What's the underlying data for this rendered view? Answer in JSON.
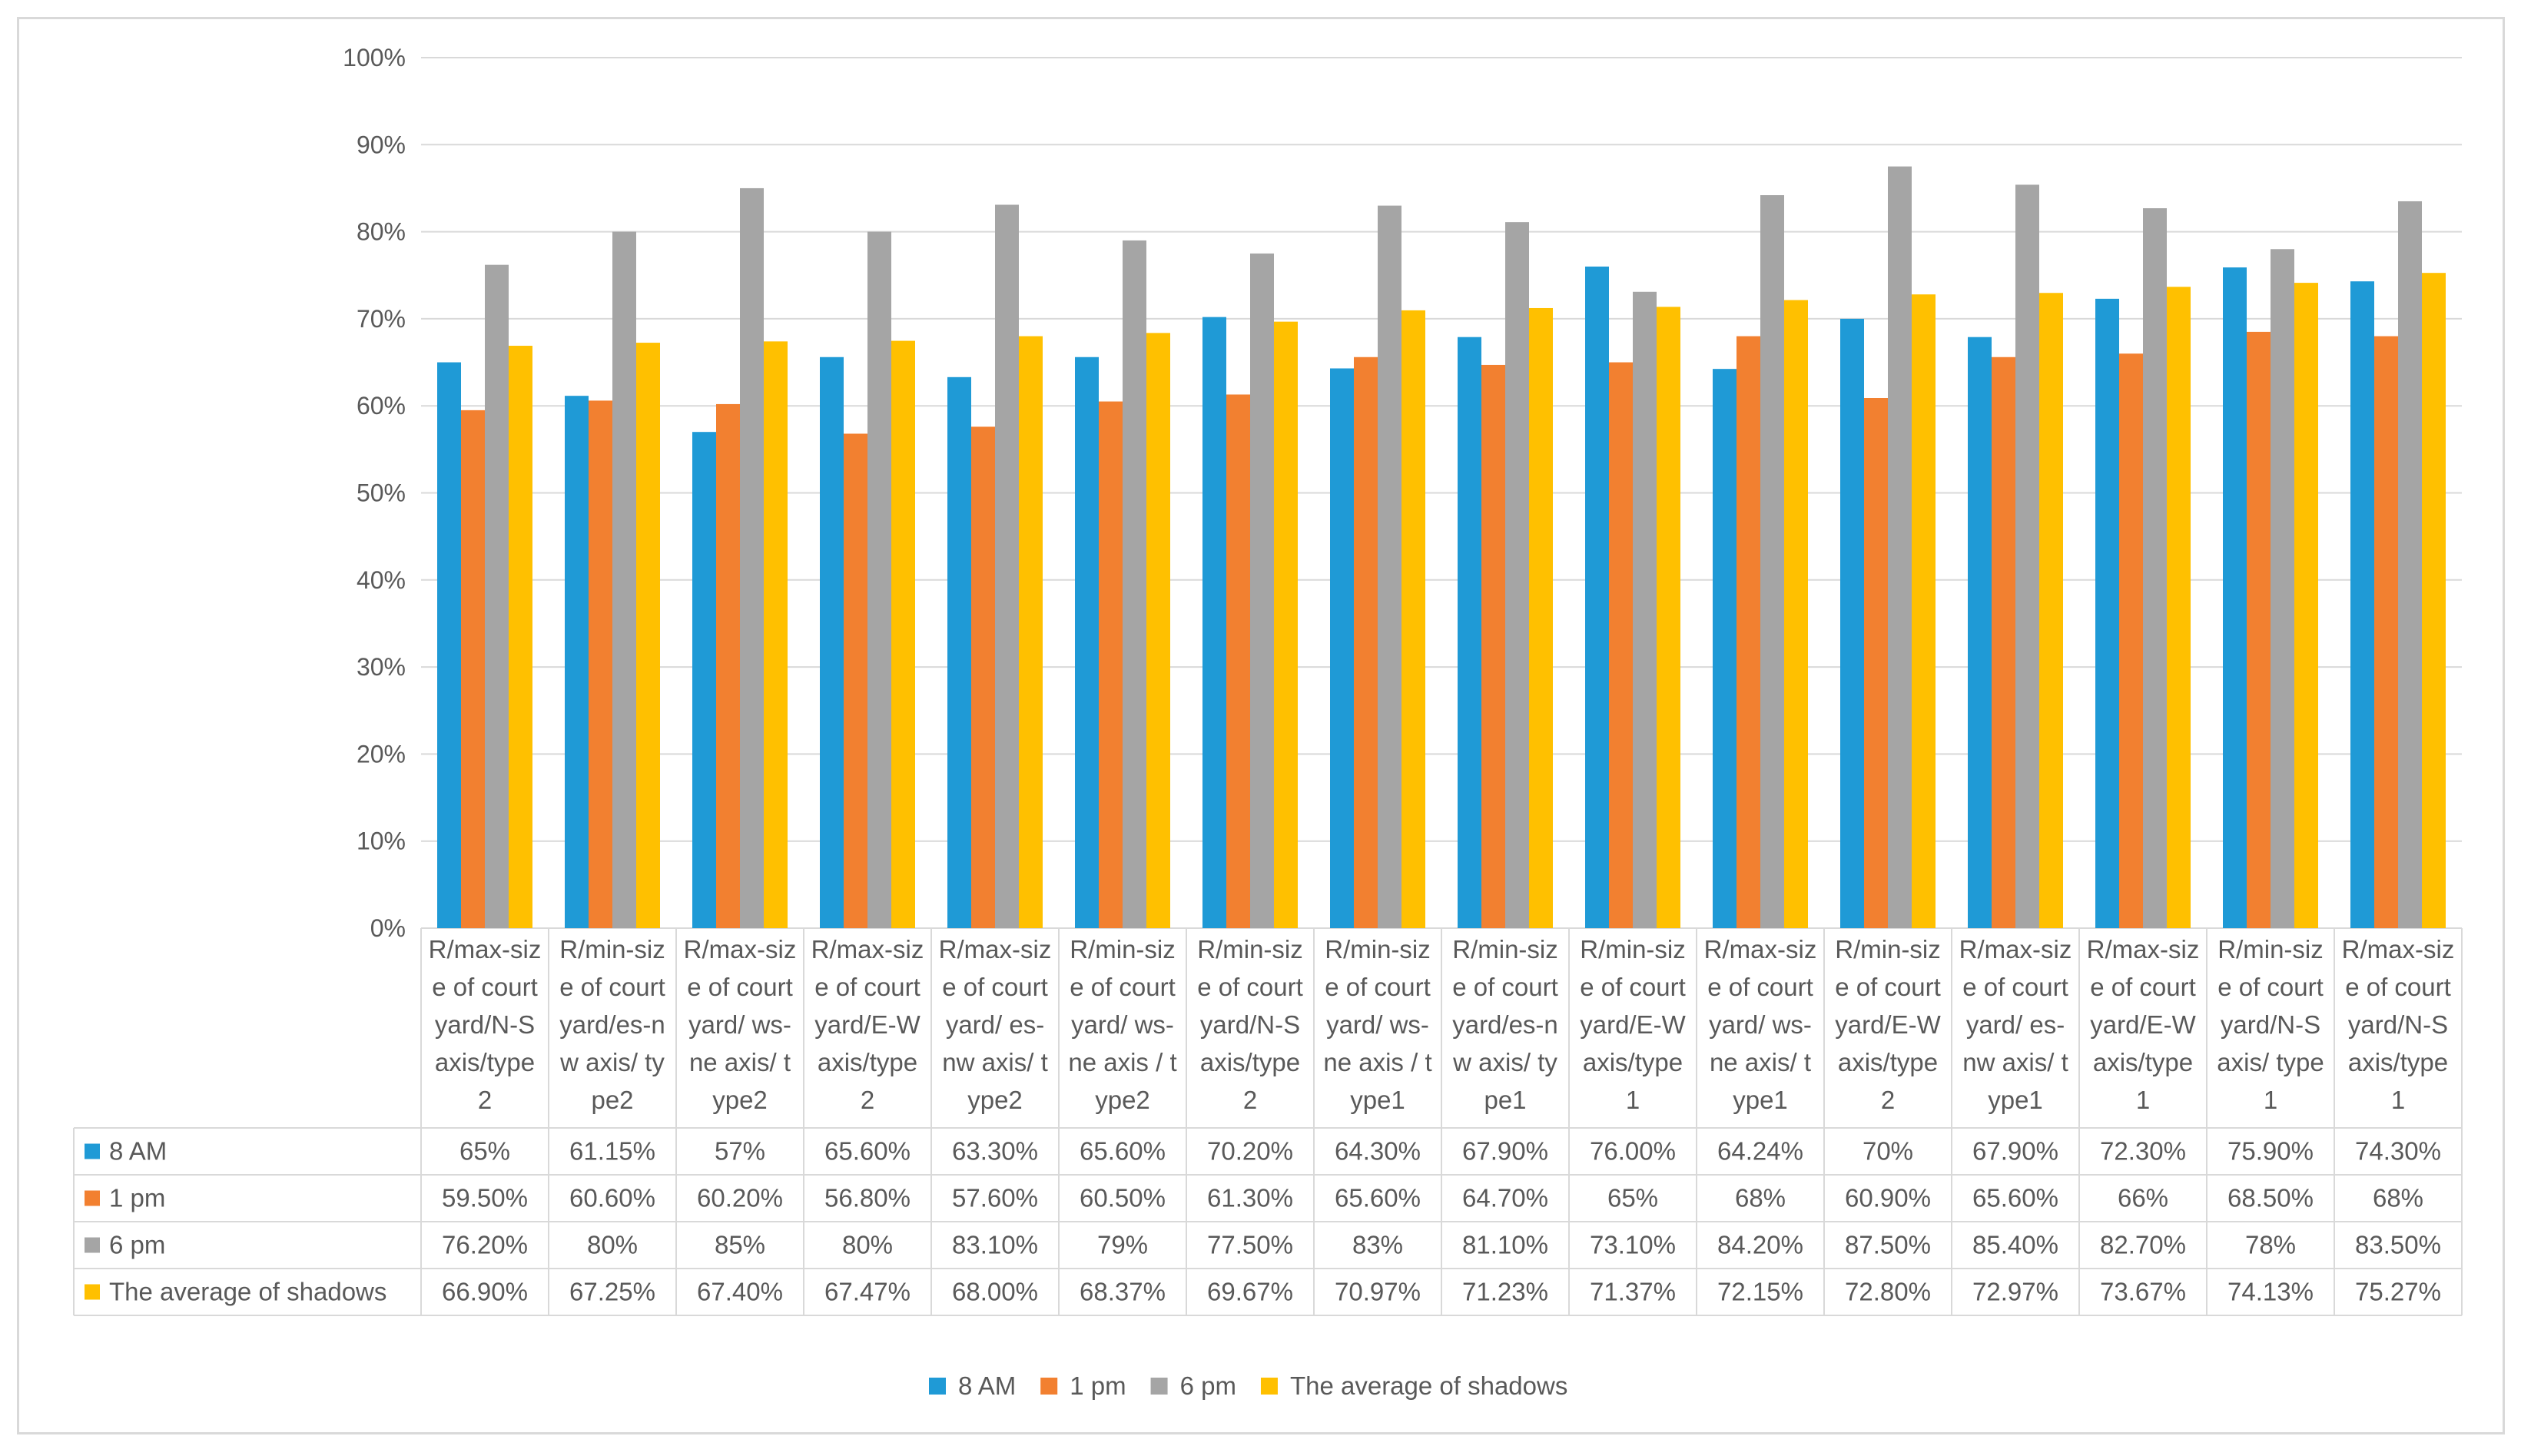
{
  "chart_data": {
    "type": "bar",
    "title": "",
    "xlabel": "",
    "ylabel": "",
    "ylim": [
      0,
      1
    ],
    "yticks": [
      "0%",
      "10%",
      "20%",
      "30%",
      "40%",
      "50%",
      "60%",
      "70%",
      "80%",
      "90%",
      "100%"
    ],
    "categories": [
      [
        "R/max-siz",
        "e of court",
        "yard/N-S",
        "axis/type",
        "2"
      ],
      [
        "R/min-siz",
        "e of court",
        "yard/es-n",
        "w axis/ ty",
        "pe2"
      ],
      [
        "R/max-siz",
        "e of court",
        "yard/ ws-",
        "ne axis/ t",
        "ype2"
      ],
      [
        "R/max-siz",
        "e of court",
        "yard/E-W",
        "axis/type",
        "2"
      ],
      [
        "R/max-siz",
        "e of court",
        "yard/ es-",
        "nw axis/ t",
        "ype2"
      ],
      [
        "R/min-siz",
        "e of court",
        "yard/ ws-",
        "ne axis / t",
        "ype2"
      ],
      [
        "R/min-siz",
        "e of court",
        "yard/N-S",
        "axis/type",
        "2"
      ],
      [
        "R/min-siz",
        "e of court",
        "yard/ ws-",
        "ne axis / t",
        "ype1"
      ],
      [
        "R/min-siz",
        "e of court",
        "yard/es-n",
        "w axis/ ty",
        "pe1"
      ],
      [
        "R/min-siz",
        "e of court",
        "yard/E-W",
        "axis/type",
        "1"
      ],
      [
        "R/max-siz",
        "e of court",
        "yard/ ws-",
        "ne axis/ t",
        "ype1"
      ],
      [
        "R/min-siz",
        "e of court",
        "yard/E-W",
        "axis/type",
        "2"
      ],
      [
        "R/max-siz",
        "e of court",
        "yard/ es-",
        "nw axis/ t",
        "ype1"
      ],
      [
        "R/max-siz",
        "e of court",
        "yard/E-W",
        "axis/type",
        "1"
      ],
      [
        "R/min-siz",
        "e of court",
        "yard/N-S",
        "axis/ type",
        "1"
      ],
      [
        "R/max-siz",
        "e of court",
        "yard/N-S",
        "axis/type",
        "1"
      ]
    ],
    "series": [
      {
        "name": "8 AM",
        "color": "#1f9ad6",
        "values": [
          0.65,
          0.6115,
          0.57,
          0.656,
          0.633,
          0.656,
          0.702,
          0.643,
          0.679,
          0.76,
          0.6424,
          0.7,
          0.679,
          0.723,
          0.759,
          0.743
        ],
        "labels": [
          "65%",
          "61.15%",
          "57%",
          "65.60%",
          "63.30%",
          "65.60%",
          "70.20%",
          "64.30%",
          "67.90%",
          "76.00%",
          "64.24%",
          "70%",
          "67.90%",
          "72.30%",
          "75.90%",
          "74.30%"
        ]
      },
      {
        "name": "1 pm",
        "color": "#f28030",
        "values": [
          0.595,
          0.606,
          0.602,
          0.568,
          0.576,
          0.605,
          0.613,
          0.656,
          0.647,
          0.65,
          0.68,
          0.609,
          0.656,
          0.66,
          0.685,
          0.68
        ],
        "labels": [
          "59.50%",
          "60.60%",
          "60.20%",
          "56.80%",
          "57.60%",
          "60.50%",
          "61.30%",
          "65.60%",
          "64.70%",
          "65%",
          "68%",
          "60.90%",
          "65.60%",
          "66%",
          "68.50%",
          "68%"
        ]
      },
      {
        "name": "6 pm",
        "color": "#a5a5a5",
        "values": [
          0.762,
          0.8,
          0.85,
          0.8,
          0.831,
          0.79,
          0.775,
          0.83,
          0.811,
          0.731,
          0.842,
          0.875,
          0.854,
          0.827,
          0.78,
          0.835
        ],
        "labels": [
          "76.20%",
          "80%",
          "85%",
          "80%",
          "83.10%",
          "79%",
          "77.50%",
          "83%",
          "81.10%",
          "73.10%",
          "84.20%",
          "87.50%",
          "85.40%",
          "82.70%",
          "78%",
          "83.50%"
        ]
      },
      {
        "name": "The average of shadows",
        "color": "#ffc000",
        "values": [
          0.669,
          0.6725,
          0.674,
          0.6747,
          0.68,
          0.6837,
          0.6967,
          0.7097,
          0.7123,
          0.7137,
          0.7215,
          0.728,
          0.7297,
          0.7367,
          0.7413,
          0.7527
        ],
        "labels": [
          "66.90%",
          "67.25%",
          "67.40%",
          "67.47%",
          "68.00%",
          "68.37%",
          "69.67%",
          "70.97%",
          "71.23%",
          "71.37%",
          "72.15%",
          "72.80%",
          "72.97%",
          "73.67%",
          "74.13%",
          "75.27%"
        ]
      }
    ],
    "legend_position": "bottom",
    "data_table": true,
    "grid": true
  }
}
